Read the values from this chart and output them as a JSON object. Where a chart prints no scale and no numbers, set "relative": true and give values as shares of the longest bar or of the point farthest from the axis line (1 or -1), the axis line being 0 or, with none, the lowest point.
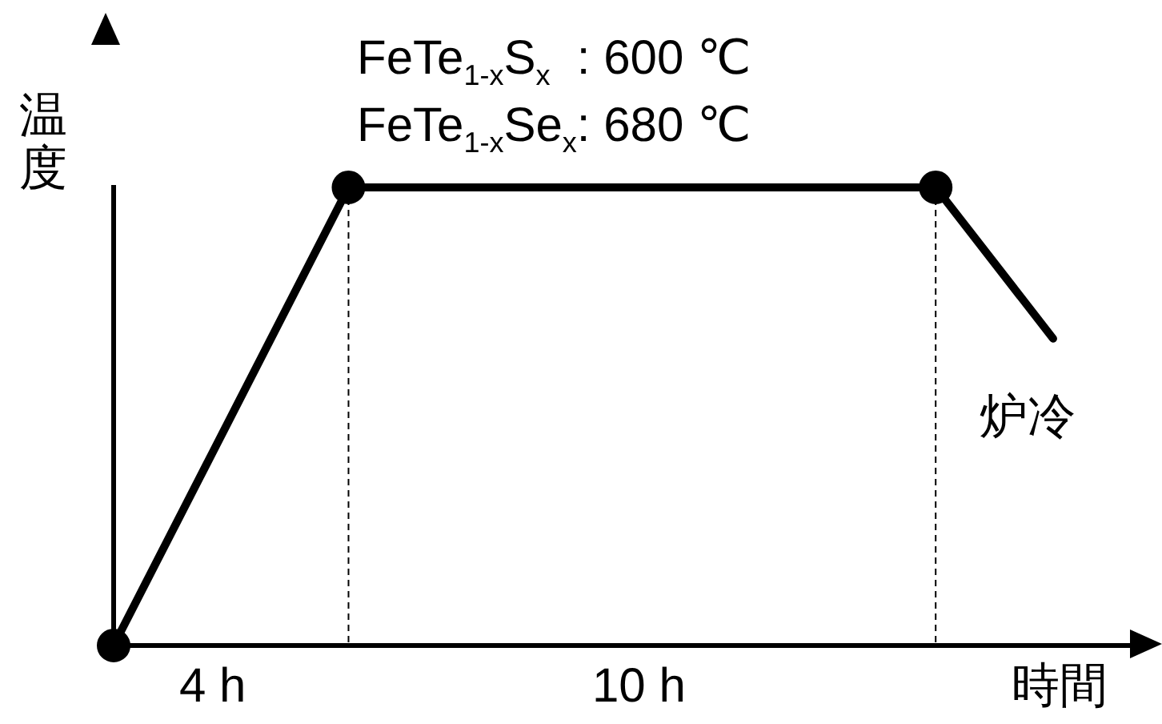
{
  "chart_data": {
    "type": "line",
    "relative": true,
    "xlabel": "時間",
    "ylabel": "温度",
    "categories": [
      null,
      null,
      null,
      null,
      null,
      null,
      null,
      null,
      null,
      null,
      null,
      null,
      null,
      null,
      null,
      null,
      null,
      null
    ],
    "series": [
      {
        "values": [
          0,
          null,
          null,
          null,
          1,
          null,
          null,
          null,
          null,
          null,
          null,
          null,
          null,
          null,
          1,
          null,
          null,
          null
        ],
        "color": "#000000",
        "marker": "circle"
      },
      {
        "values": [
          null,
          null,
          null,
          null,
          null,
          null,
          null,
          null,
          null,
          null,
          null,
          null,
          null,
          null,
          1,
          null,
          0.67,
          null
        ],
        "color": "#000000",
        "marker": "none"
      }
    ],
    "annotations": [
      "FeTe$_{1-x}$S$_{x}$  : 600 ℃",
      "FeTe$_{1-x}$Se$_{x}$: 680 ℃",
      "炉冷",
      "4 h",
      "10 h"
    ],
    "grid": false,
    "legend": false
  }
}
